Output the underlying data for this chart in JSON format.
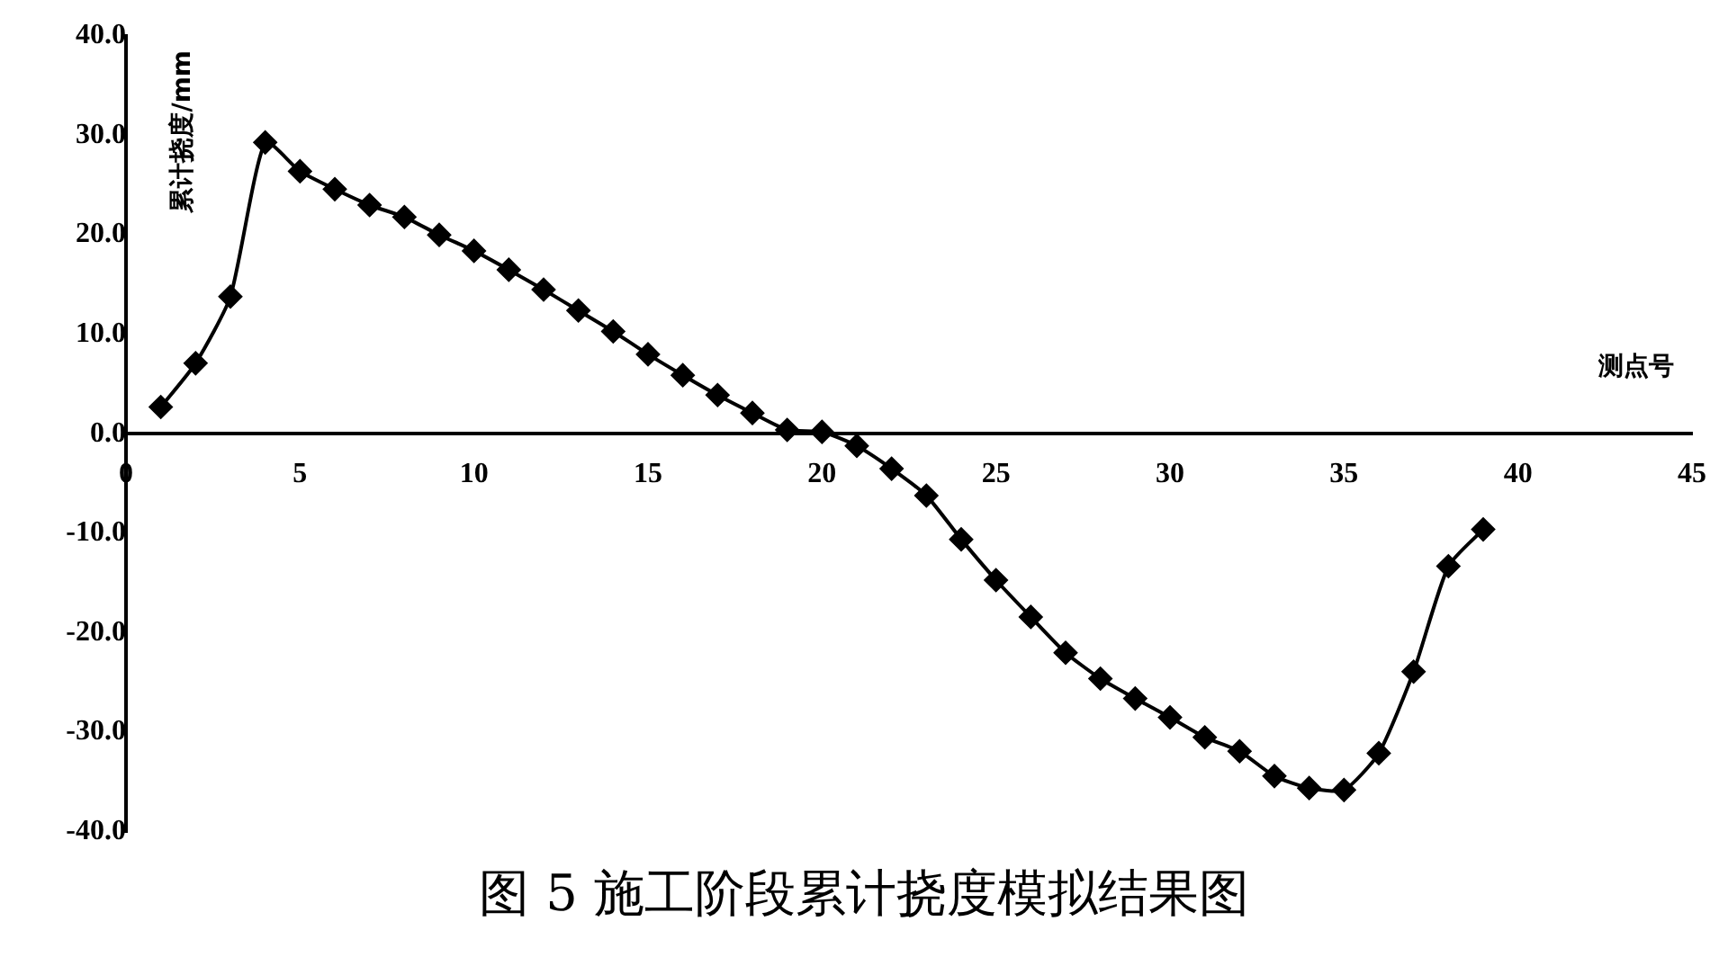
{
  "chart_data": {
    "type": "line",
    "title": "图 5 施工阶段累计挠度模拟结果图",
    "xlabel": "测点号",
    "ylabel": "累计挠度/mm",
    "x": [
      1,
      2,
      3,
      4,
      5,
      6,
      7,
      8,
      9,
      10,
      11,
      12,
      13,
      14,
      15,
      16,
      17,
      18,
      19,
      20,
      21,
      22,
      23,
      24,
      25,
      26,
      27,
      28,
      29,
      30,
      31,
      32,
      33,
      34,
      35,
      36,
      37,
      38,
      39
    ],
    "series": [
      {
        "color": "#000000",
        "values": [
          2.7,
          7.1,
          13.8,
          29.3,
          26.4,
          24.6,
          23.0,
          21.8,
          20.0,
          18.4,
          16.5,
          14.5,
          12.4,
          10.3,
          8.0,
          5.9,
          3.9,
          2.1,
          0.4,
          0.2,
          -1.2,
          -3.5,
          -6.2,
          -10.6,
          -14.7,
          -18.4,
          -22.0,
          -24.6,
          -26.6,
          -28.5,
          -30.5,
          -31.9,
          -34.4,
          -35.6,
          -35.8,
          -32.1,
          -23.9,
          -13.3,
          -9.6
        ]
      }
    ],
    "xlim": [
      0,
      45
    ],
    "xticks": [
      0,
      5,
      10,
      15,
      20,
      25,
      30,
      35,
      40,
      45
    ],
    "ylim": [
      -40,
      40
    ],
    "yticks": [
      {
        "value": -40,
        "label": "-40.0"
      },
      {
        "value": -30,
        "label": "-30.0"
      },
      {
        "value": -20,
        "label": "-20.0"
      },
      {
        "value": -10,
        "label": "-10.0"
      },
      {
        "value": 0,
        "label": "0.0"
      },
      {
        "value": 10,
        "label": "10.0"
      },
      {
        "value": 20,
        "label": "20.0"
      },
      {
        "value": 30,
        "label": "30.0"
      },
      {
        "value": 40,
        "label": "40.0"
      }
    ],
    "grid": false,
    "legend": false,
    "marker": "diamond",
    "line_style": "solid"
  }
}
